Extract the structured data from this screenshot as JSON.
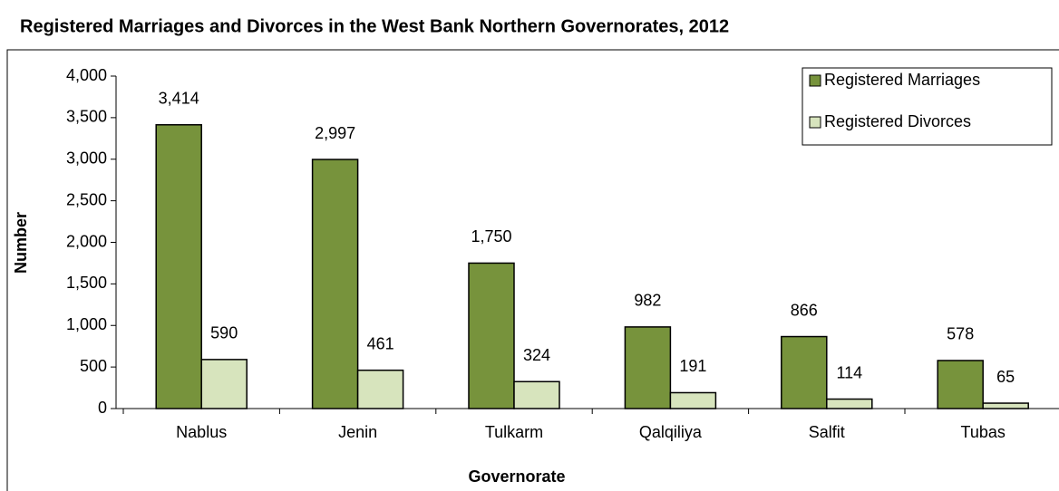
{
  "chart_data": {
    "type": "bar",
    "title": "Registered Marriages and Divorces in the West Bank Northern Governorates, 2012",
    "xlabel": "Governorate",
    "ylabel": "Number",
    "categories": [
      "Nablus",
      "Jenin",
      "Tulkarm",
      "Qalqiliya",
      "Salfit",
      "Tubas"
    ],
    "series": [
      {
        "name": "Registered Marriages",
        "color": "#77933c",
        "values": [
          3414,
          2997,
          1750,
          982,
          866,
          578
        ],
        "value_labels": [
          "3,414",
          "2,997",
          "1,750",
          "982",
          "866",
          "578"
        ]
      },
      {
        "name": "Registered Divorces",
        "color": "#d7e4bd",
        "values": [
          590,
          461,
          324,
          191,
          114,
          65
        ]
      }
    ],
    "ylim": [
      0,
      4000
    ],
    "yticks": [
      0,
      500,
      {
        "value": 1000,
        "label": "1,000"
      },
      {
        "value": 1500,
        "label": "1,500"
      },
      {
        "value": 2000,
        "label": "2,000"
      },
      {
        "value": 2500,
        "label": "2,500"
      },
      {
        "value": 3000,
        "label": "3,000"
      },
      {
        "value": 3500,
        "label": "3,500"
      },
      {
        "value": 4000,
        "label": "4,000"
      }
    ],
    "legend": "upper right"
  }
}
